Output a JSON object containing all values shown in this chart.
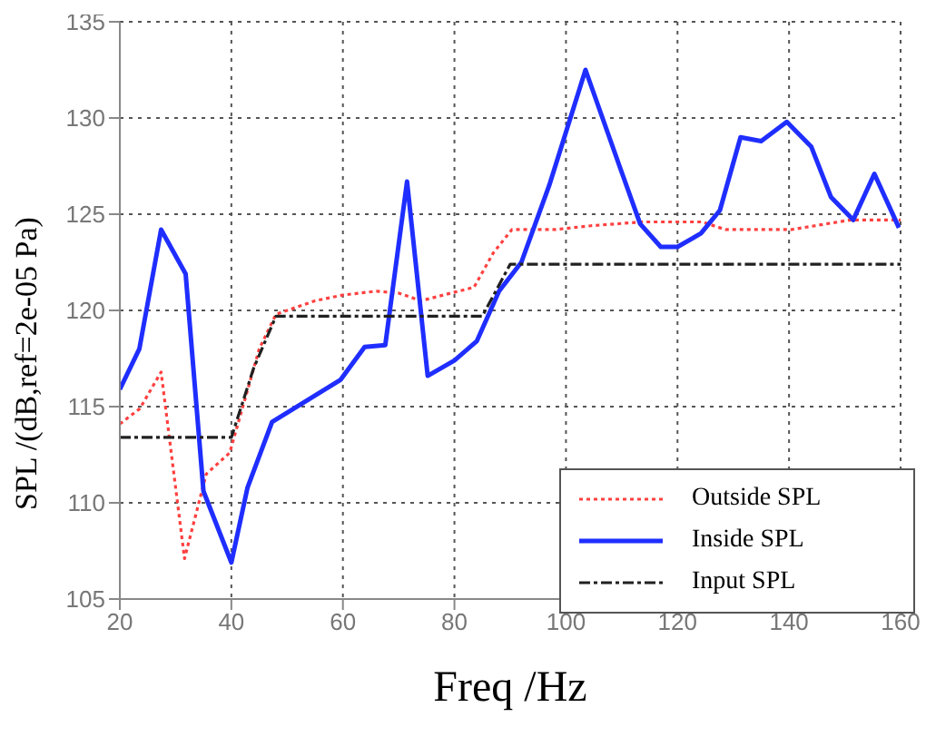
{
  "chart_data": {
    "type": "line",
    "xlabel": "Freq /Hz",
    "ylabel": "SPL /(dB,ref=2e-05 Pa)",
    "xlim": [
      20,
      160
    ],
    "xticks": [
      20,
      40,
      60,
      80,
      100,
      120,
      140,
      160
    ],
    "ylim": [
      105,
      135
    ],
    "yticks": [
      105,
      110,
      115,
      120,
      125,
      130,
      135
    ],
    "grid": true,
    "legend": "bottom right",
    "marker": "none",
    "series": [
      {
        "name": "Outside SPL",
        "color": "#ff4040",
        "line_style": "dotted",
        "x": [
          20,
          23.6,
          27.4,
          31.6,
          35.5,
          39.7,
          45,
          48,
          55,
          60,
          66,
          70,
          74,
          78,
          83.5,
          87,
          90.3,
          98,
          104.5,
          113.7,
          124.4,
          128.6,
          140.4,
          151,
          160
        ],
        "values": [
          114.1,
          114.9,
          116.8,
          107.1,
          111.5,
          112.6,
          118,
          119.8,
          120.5,
          120.8,
          121,
          120.9,
          120.5,
          120.8,
          121.2,
          123,
          124.2,
          124.2,
          124.4,
          124.6,
          124.6,
          124.2,
          124.2,
          124.7,
          124.7
        ]
      },
      {
        "name": "Inside SPL",
        "color": "#1f2eff",
        "line_style": "solid",
        "x": [
          20,
          23.5,
          27.4,
          31.8,
          35,
          40,
          42.9,
          47.3,
          59.6,
          63.9,
          67.6,
          71.5,
          75.2,
          80,
          84,
          88,
          92,
          97,
          103.5,
          109.6,
          113.3,
          117,
          120,
          124.2,
          127.6,
          131.3,
          135,
          139.6,
          144,
          147.5,
          151.5,
          155.3,
          159.7
        ],
        "values": [
          115.9,
          118,
          124.2,
          121.9,
          110.6,
          106.9,
          110.8,
          114.2,
          116.4,
          118.1,
          118.2,
          126.7,
          116.6,
          117.4,
          118.4,
          121,
          122.5,
          126.5,
          132.5,
          127.5,
          124.5,
          123.3,
          123.3,
          124,
          125.2,
          129,
          128.8,
          129.8,
          128.5,
          125.9,
          124.7,
          127.1,
          124.3
        ]
      },
      {
        "name": "Input SPL",
        "color": "#202020",
        "line_style": "dashdot",
        "x": [
          20,
          40,
          44,
          48,
          85,
          90,
          160
        ],
        "values": [
          113.4,
          113.4,
          117,
          119.7,
          119.7,
          122.4,
          122.4
        ]
      }
    ]
  }
}
